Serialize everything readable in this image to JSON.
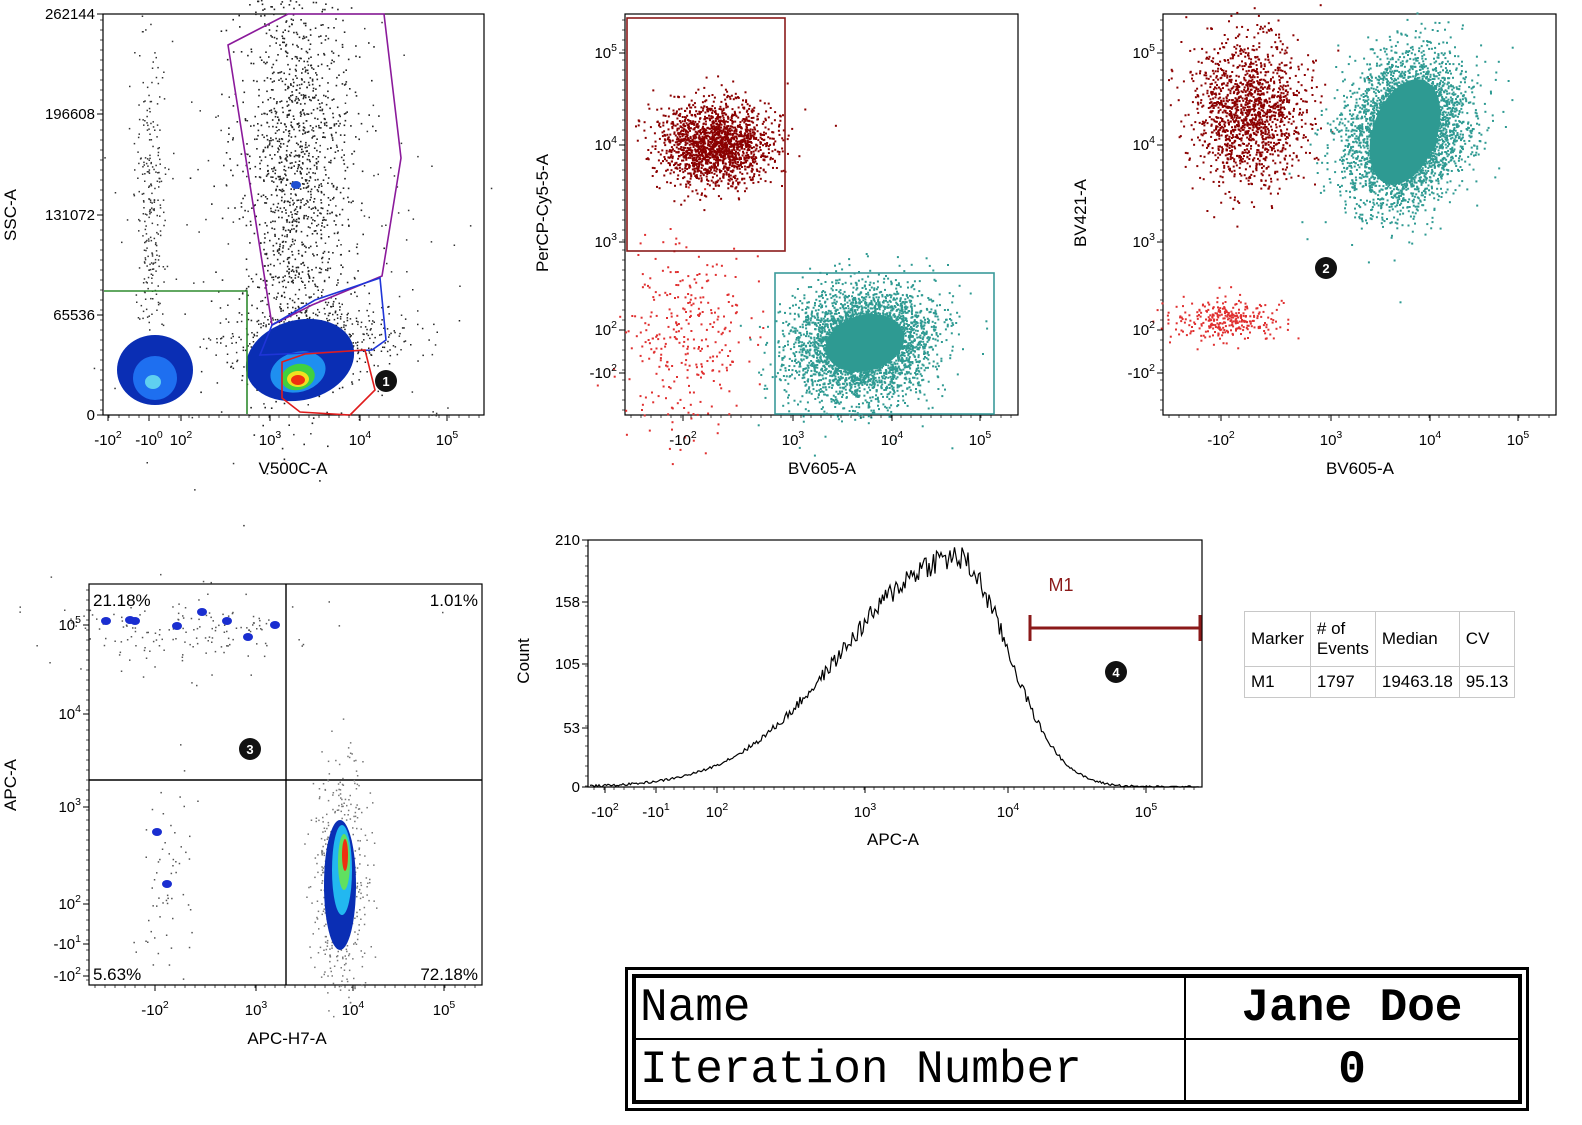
{
  "chart_data": [
    {
      "id": "plot1",
      "type": "scatter",
      "xlabel": "V500C-A",
      "ylabel": "SSC-A",
      "x_ticks": [
        "-10^2",
        "-10^0",
        "10^2",
        "10^3",
        "10^4",
        "10^5"
      ],
      "y_ticks": [
        "0",
        "65536",
        "131072",
        "196608",
        "262144"
      ],
      "ylim": [
        0,
        262144
      ],
      "gates": [
        {
          "color": "#2e8b2e",
          "shape": "rectangle"
        },
        {
          "color": "#8b1a9b",
          "shape": "polygon"
        },
        {
          "color": "#1f35d8",
          "shape": "polygon"
        },
        {
          "color": "#e01c1c",
          "shape": "polygon"
        }
      ],
      "annotation": "1"
    },
    {
      "id": "plot2",
      "type": "scatter",
      "xlabel": "BV605-A",
      "ylabel": "PerCP-Cy5-5-A",
      "x_ticks": [
        "-10^2",
        "10^3",
        "10^4",
        "10^5"
      ],
      "y_ticks": [
        "10^5",
        "10^4",
        "10^3",
        "10^2",
        "-10^2"
      ],
      "gates": [
        {
          "color": "#8b1a1a",
          "shape": "rectangle"
        },
        {
          "color": "#3a9a9a",
          "shape": "rectangle"
        }
      ],
      "populations": [
        {
          "color": "#8b0000"
        },
        {
          "color": "#2e9a92"
        },
        {
          "color": "#e03030"
        }
      ]
    },
    {
      "id": "plot3",
      "type": "scatter",
      "xlabel": "BV605-A",
      "ylabel": "BV421-A",
      "x_ticks": [
        "-10^2",
        "10^3",
        "10^4",
        "10^5"
      ],
      "y_ticks": [
        "10^5",
        "10^4",
        "10^3",
        "10^2",
        "-10^2"
      ],
      "annotation": "2"
    },
    {
      "id": "plot4",
      "type": "scatter",
      "xlabel": "APC-H7-A",
      "ylabel": "APC-A",
      "x_ticks": [
        "-10^2",
        "10^3",
        "10^4",
        "10^5"
      ],
      "y_ticks": [
        "10^5",
        "10^4",
        "10^3",
        "10^2",
        "-10^1",
        "-10^2"
      ],
      "quadrants": {
        "UL": "21.18%",
        "UR": "1.01%",
        "LL": "5.63%",
        "LR": "72.18%"
      },
      "annotation": "3"
    },
    {
      "id": "histogram",
      "type": "line",
      "xlabel": "APC-A",
      "ylabel": "Count",
      "x_ticks": [
        "-10^2",
        "-10^1",
        "10^2",
        "10^3",
        "10^4",
        "10^5"
      ],
      "y_ticks": [
        "0",
        "53",
        "105",
        "158",
        "210"
      ],
      "ylim": [
        0,
        210
      ],
      "marker": {
        "label": "M1",
        "color": "#8b1a1a"
      },
      "peak": {
        "x": "~4000",
        "y": 195
      },
      "annotation": "4"
    }
  ],
  "stats_table": {
    "headers": [
      "Marker",
      "# of\nEvents",
      "Median",
      "CV"
    ],
    "rows": [
      [
        "M1",
        "1797",
        "19463.18",
        "95.13"
      ]
    ]
  },
  "info_table": {
    "name_label": "Name",
    "name_value": "Jane Doe",
    "iteration_label": "Iteration Number",
    "iteration_value": "0"
  }
}
